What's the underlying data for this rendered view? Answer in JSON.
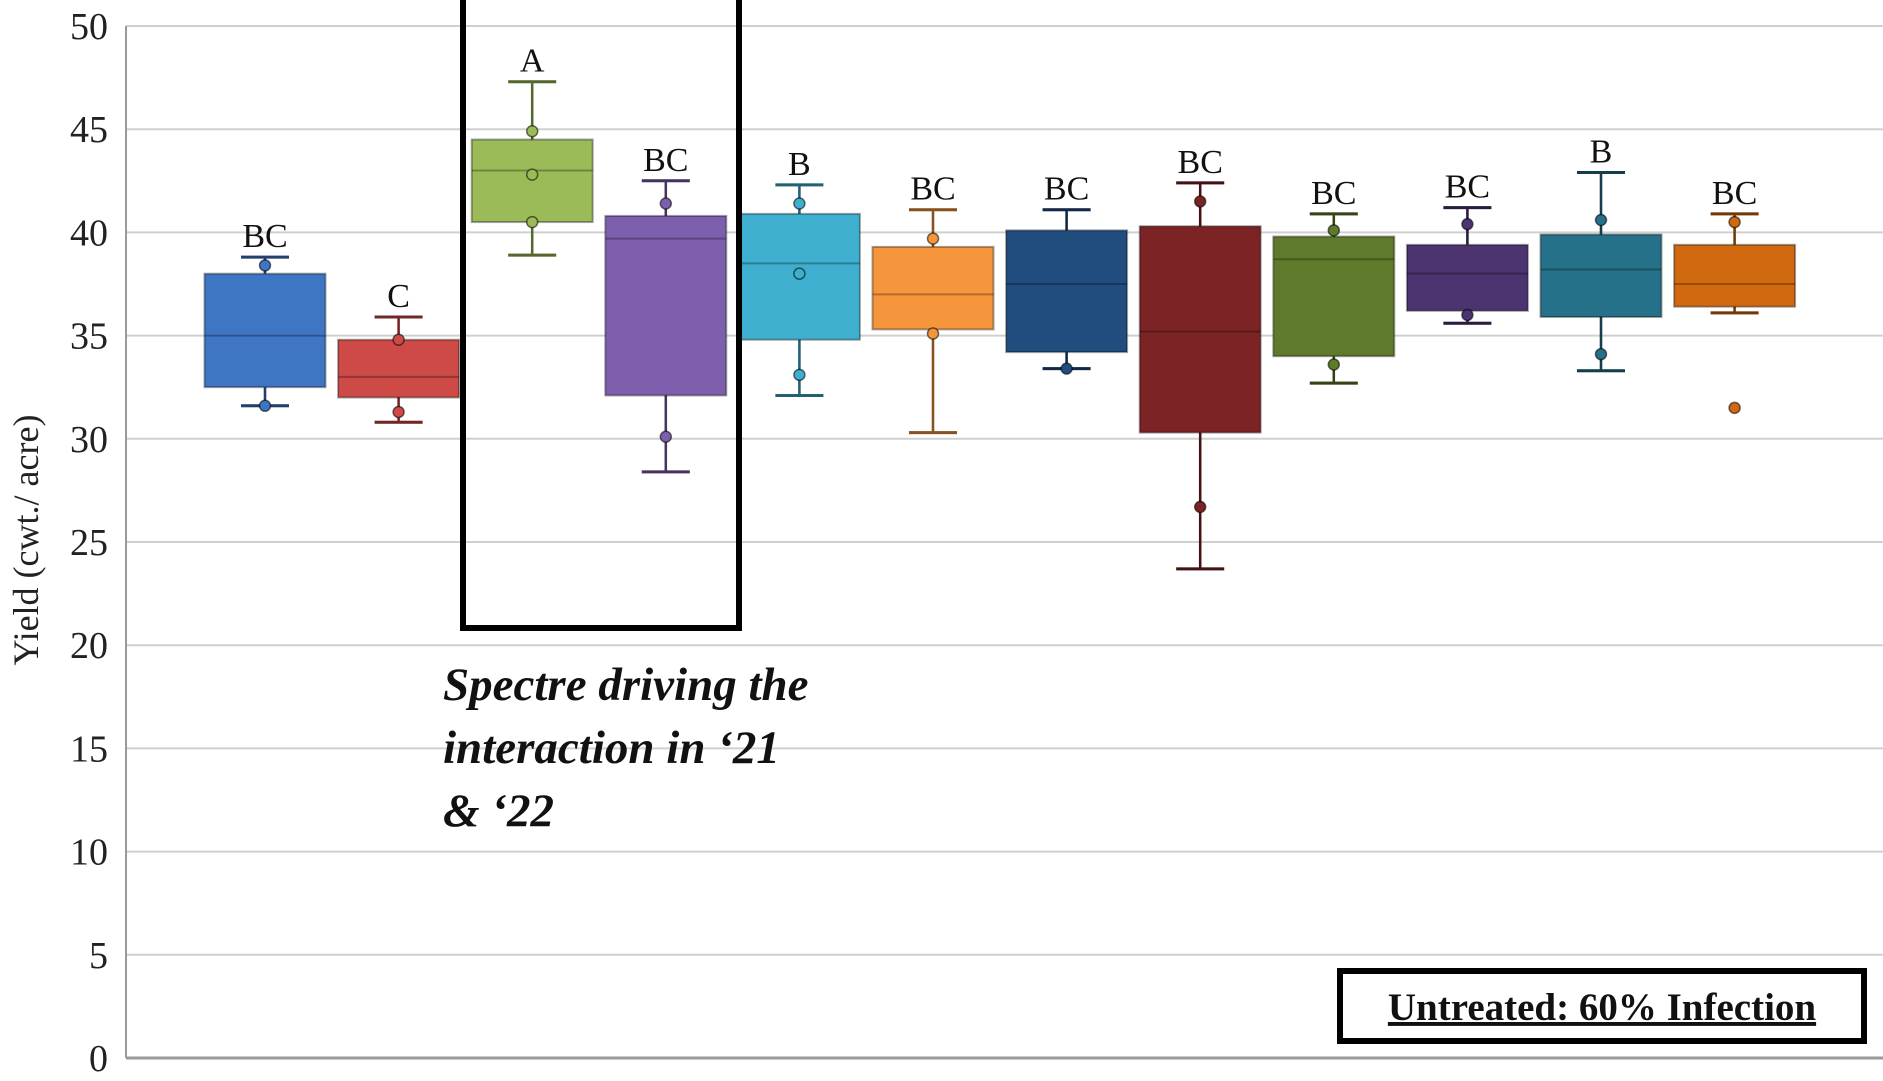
{
  "chart_data": {
    "type": "box",
    "ylabel": "Yield (cwt./ acre)",
    "ylim": [
      0,
      50
    ],
    "y_ticks": [
      "0",
      "5",
      "10",
      "15",
      "20",
      "25",
      "30",
      "35",
      "40",
      "45",
      "50"
    ],
    "grid": true,
    "series": [
      {
        "min": 31.6,
        "q1": 32.5,
        "median": 35.0,
        "q3": 38.0,
        "max": 38.8,
        "points": [
          31.6,
          38.4
        ],
        "letter": "BC",
        "color": "#3F76C4"
      },
      {
        "min": 30.8,
        "q1": 32.0,
        "median": 33.0,
        "q3": 34.8,
        "max": 35.9,
        "points": [
          31.3,
          34.8
        ],
        "letter": "C",
        "color": "#CD4A47"
      },
      {
        "min": 38.9,
        "q1": 40.5,
        "median": 43.0,
        "q3": 44.5,
        "max": 47.3,
        "points": [
          40.5,
          42.8,
          44.9
        ],
        "letter": "A",
        "color": "#9BBB59"
      },
      {
        "min": 28.4,
        "q1": 32.1,
        "median": 39.7,
        "q3": 40.8,
        "max": 42.5,
        "points": [
          30.1,
          41.4
        ],
        "letter": "BC",
        "color": "#7E5FAE"
      },
      {
        "min": 32.1,
        "q1": 34.8,
        "median": 38.5,
        "q3": 40.9,
        "max": 42.3,
        "points": [
          33.1,
          38.0,
          41.4
        ],
        "letter": "B",
        "color": "#3EAFCF"
      },
      {
        "min": 30.3,
        "q1": 35.3,
        "median": 37.0,
        "q3": 39.3,
        "max": 41.1,
        "points": [
          35.1,
          39.7
        ],
        "letter": "BC",
        "color": "#F5963C"
      },
      {
        "min": 33.4,
        "q1": 34.2,
        "median": 37.5,
        "q3": 40.1,
        "max": 41.1,
        "points": [
          33.4
        ],
        "letter": "BC",
        "color": "#214C7E"
      },
      {
        "min": 23.7,
        "q1": 30.3,
        "median": 35.2,
        "q3": 40.3,
        "max": 42.4,
        "points": [
          26.7,
          41.5
        ],
        "letter": "BC",
        "color": "#7B2325"
      },
      {
        "min": 32.7,
        "q1": 34.0,
        "median": 38.7,
        "q3": 39.8,
        "max": 40.9,
        "points": [
          33.6,
          40.1
        ],
        "letter": "BC",
        "color": "#5F7A2B"
      },
      {
        "min": 35.6,
        "q1": 36.2,
        "median": 38.0,
        "q3": 39.4,
        "max": 41.2,
        "points": [
          36.0,
          40.4
        ],
        "letter": "BC",
        "color": "#4B3470"
      },
      {
        "min": 33.3,
        "q1": 35.9,
        "median": 38.2,
        "q3": 39.9,
        "max": 42.9,
        "points": [
          34.1,
          40.6
        ],
        "letter": "B",
        "color": "#26718A"
      },
      {
        "min": 36.1,
        "q1": 36.4,
        "median": 37.5,
        "q3": 39.4,
        "max": 40.9,
        "points": [
          31.5,
          40.5
        ],
        "letter": "BC",
        "color": "#D0690F"
      }
    ]
  },
  "annotation": {
    "lines": [
      "Spectre driving the",
      "interaction in ‘21",
      "& ‘22"
    ]
  },
  "legend_box": {
    "label": "Untreated: 60% Infection"
  },
  "colors": {
    "grid": "#D0D0D0",
    "axis": "#9A9A9A",
    "highlight_frame": "#000000"
  }
}
